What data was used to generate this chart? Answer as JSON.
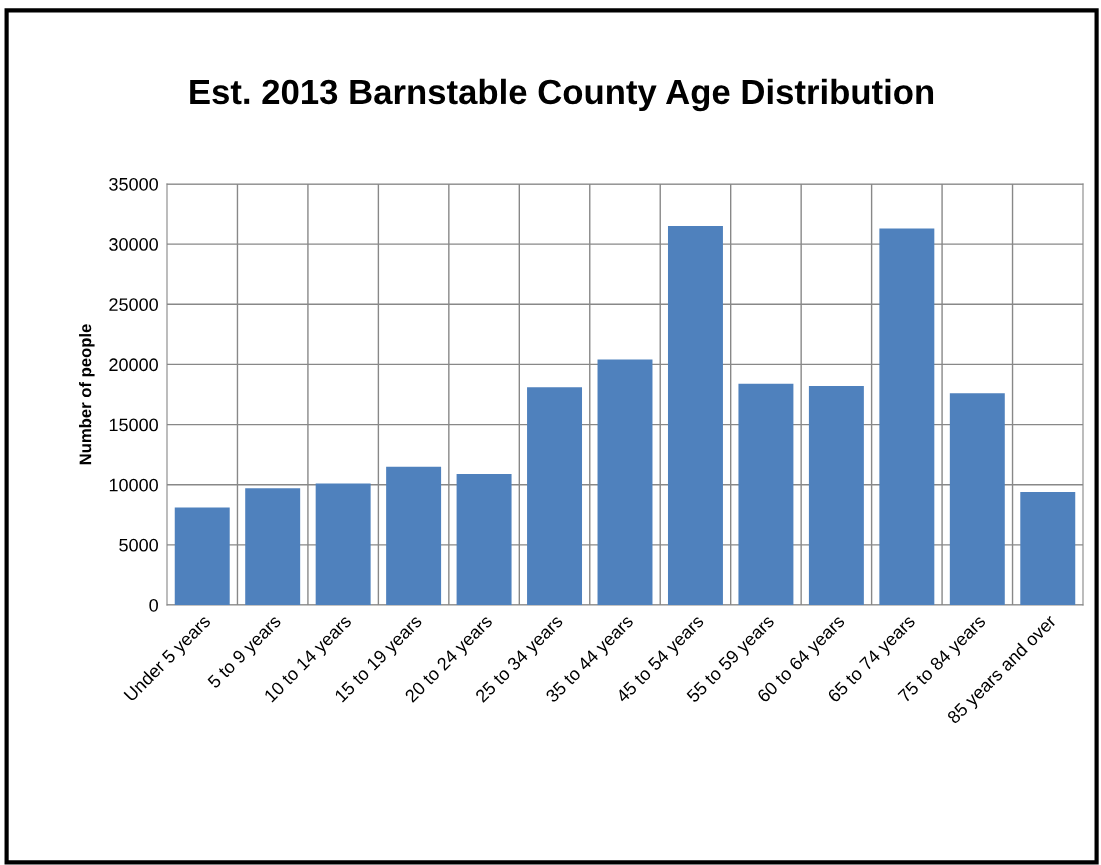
{
  "chart_data": {
    "type": "bar",
    "title": "Est. 2013 Barnstable County Age Distribution",
    "ylabel": "Number of people",
    "categories": [
      "Under 5 years",
      "5 to 9 years",
      "10 to 14 years",
      "15 to 19 years",
      "20 to 24 years",
      "25 to 34 years",
      "35 to 44 years",
      "45 to 54 years",
      "55 to 59 years",
      "60 to 64 years",
      "65 to 74 years",
      "75 to 84 years",
      "85 years and over"
    ],
    "values": [
      8100,
      9700,
      10100,
      11500,
      10900,
      18100,
      20400,
      31500,
      18400,
      18200,
      31300,
      17600,
      9400
    ],
    "color": "#4f81bd",
    "ylim": [
      0,
      35000
    ],
    "yticks": [
      0,
      5000,
      10000,
      15000,
      20000,
      25000,
      30000,
      35000
    ],
    "grid": true,
    "legend": false
  }
}
